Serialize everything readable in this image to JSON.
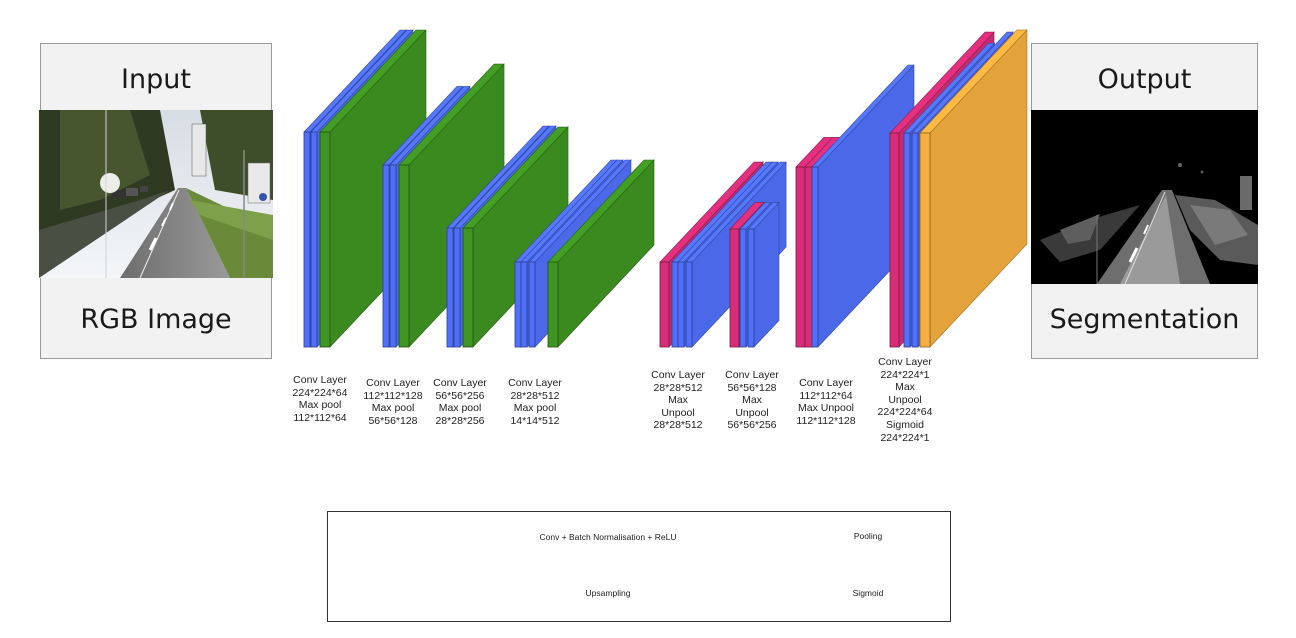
{
  "colors": {
    "conv": "#4a68e8",
    "pool": "#3a8a1f",
    "upsample": "#c72a6f",
    "sigmoid": "#e3a23a",
    "legend_conv": "#3333ee",
    "legend_pool": "#3a8a2a",
    "legend_upsample": "#c92a6e",
    "legend_sigmoid": "#e2a238"
  },
  "input_panel": {
    "title": "Input",
    "subtitle": "RGB Image"
  },
  "output_panel": {
    "title": "Output",
    "subtitle": "Segmentation"
  },
  "captions": [
    {
      "id": "enc1",
      "lines": [
        "Conv Layer",
        "224*224*64",
        "Max pool",
        "112*112*64"
      ]
    },
    {
      "id": "enc2",
      "lines": [
        "Conv Layer",
        "112*112*128",
        "Max pool",
        "56*56*128"
      ]
    },
    {
      "id": "enc3",
      "lines": [
        "Conv Layer",
        "56*56*256",
        "Max pool",
        "28*28*256"
      ]
    },
    {
      "id": "enc4",
      "lines": [
        "Conv Layer",
        "28*28*512",
        "Max pool",
        "14*14*512"
      ]
    },
    {
      "id": "dec1",
      "lines": [
        "Conv Layer",
        "28*28*512",
        "Max",
        "Unpool",
        "28*28*512"
      ]
    },
    {
      "id": "dec2",
      "lines": [
        "Conv Layer",
        "56*56*128",
        "Max",
        "Unpool",
        "56*56*256"
      ]
    },
    {
      "id": "dec3",
      "lines": [
        "Conv Layer",
        "112*112*64",
        "Max Unpool",
        "112*112*128"
      ]
    },
    {
      "id": "dec4",
      "lines": [
        "Conv Layer",
        "224*224*1",
        "Max",
        "Unpool",
        "224*224*64",
        "Sigmoid",
        "224*224*1"
      ]
    }
  ],
  "legend": {
    "conv": "Conv + Batch Normalisation + ReLU",
    "pool": "Pooling",
    "upsample": "Upsampling",
    "sigmoid": "Sigmoid"
  }
}
